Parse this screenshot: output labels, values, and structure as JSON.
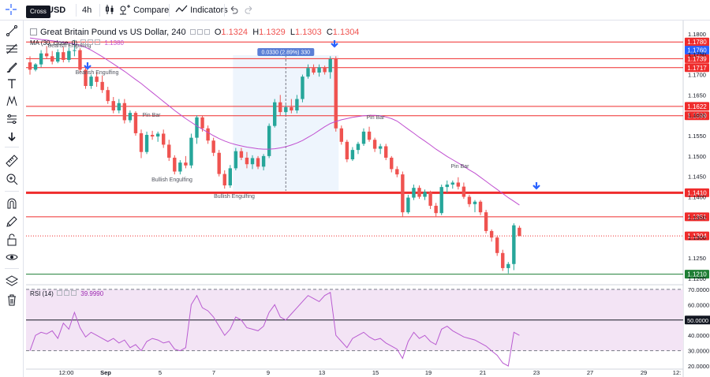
{
  "toolbar": {
    "tooltip": "Cross",
    "symbol": "USD",
    "interval": "4h",
    "compare_label": "Compare",
    "indicators_label": "Indicators"
  },
  "legend": {
    "title": "Great Britain Pound vs US Dollar, 240",
    "open_label": "O",
    "open": "1.1324",
    "high_label": "H",
    "high": "1.1329",
    "low_label": "L",
    "low": "1.1303",
    "close_label": "C",
    "close": "1.1304",
    "ma_label": "MA (30, close, 0)",
    "ma_value": "1.1380"
  },
  "rsi": {
    "label": "RSI (14)",
    "value": "39.9990"
  },
  "measure": {
    "text": "0.0330 (2.89%) 330"
  },
  "colors": {
    "up": "#26a69a",
    "down": "#ef5350",
    "ma": "#c04fd0",
    "rsi_line": "#b95bd1",
    "level": "#ef2c2c",
    "support": "#1e7e34",
    "marker": "#2962ff",
    "rsi_band": "#f3e4f5"
  },
  "icons": [
    "crosshair-icon",
    "trend-line-icon",
    "fib-icon",
    "brush-icon",
    "text-icon",
    "pattern-icon",
    "projection-icon",
    "arrow-down-icon",
    "ruler-icon",
    "zoom-in-icon",
    "magnet-icon",
    "lock-pencil-icon",
    "lock-icon",
    "eye-icon",
    "layers-icon",
    "trash-icon"
  ],
  "chart_data": {
    "type": "candlestick",
    "title": "Great Britain Pound vs US Dollar, 240",
    "price_axis": {
      "ticks": [
        "1.1800",
        "1.1750",
        "1.1700",
        "1.1650",
        "1.1600",
        "1.1550",
        "1.1500",
        "1.1450",
        "1.1400",
        "1.1350",
        "1.1300",
        "1.1250",
        "1.1200"
      ],
      "range": [
        1.119,
        1.1825
      ]
    },
    "time_axis": {
      "labels": [
        "12:00",
        "Sep",
        "5",
        "7",
        "9",
        "13",
        "15",
        "19",
        "21",
        "23",
        "27",
        "29",
        "12:"
      ]
    },
    "levels": [
      {
        "value": 1.178,
        "label": "1.1780",
        "style": "solid"
      },
      {
        "value": 1.176,
        "label": "1.1760",
        "style": "current"
      },
      {
        "value": 1.1739,
        "label": "1.1739",
        "style": "solid"
      },
      {
        "value": 1.1717,
        "label": "1.1717",
        "style": "solid"
      },
      {
        "value": 1.1622,
        "label": "1.1622",
        "style": "solid"
      },
      {
        "value": 1.1599,
        "label": "1.1599",
        "style": "solid"
      },
      {
        "value": 1.141,
        "label": "1.1410",
        "style": "thick"
      },
      {
        "value": 1.1351,
        "label": "1.1351",
        "style": "solid"
      },
      {
        "value": 1.1304,
        "label": "1.1304",
        "style": "dotted"
      },
      {
        "value": 1.121,
        "label": "1.1210",
        "style": "support"
      }
    ],
    "annotations": [
      {
        "text": "Bearish Engulfing"
      },
      {
        "text": "Bearish Engulfing"
      },
      {
        "text": "Pin Bar"
      },
      {
        "text": "Bullish Engulfing"
      },
      {
        "text": "Bullish Engulfing"
      },
      {
        "text": "Pin Bar"
      },
      {
        "text": "Pin Bar"
      }
    ],
    "ma": {
      "period": 30,
      "current": 1.138
    },
    "rsi": {
      "period": 14,
      "current": 39.999,
      "ticks": [
        "70.0000",
        "60.0000",
        "50.0000",
        "40.0000",
        "30.0000",
        "20.0000"
      ],
      "range": [
        18,
        72
      ],
      "bands": [
        30,
        70
      ],
      "mid": 50
    },
    "candles": [
      [
        1.173,
        1.1745,
        1.17,
        1.1712
      ],
      [
        1.1712,
        1.1728,
        1.1708,
        1.1725
      ],
      [
        1.1725,
        1.176,
        1.1718,
        1.1752
      ],
      [
        1.1752,
        1.177,
        1.174,
        1.1745
      ],
      [
        1.1745,
        1.1758,
        1.1725,
        1.1732
      ],
      [
        1.1732,
        1.1762,
        1.1728,
        1.1755
      ],
      [
        1.1755,
        1.1768,
        1.173,
        1.1736
      ],
      [
        1.1736,
        1.1766,
        1.173,
        1.1758
      ],
      [
        1.1758,
        1.1785,
        1.1745,
        1.176
      ],
      [
        1.176,
        1.1765,
        1.1705,
        1.1712
      ],
      [
        1.1712,
        1.172,
        1.1665,
        1.1672
      ],
      [
        1.1672,
        1.17,
        1.1665,
        1.1695
      ],
      [
        1.1695,
        1.1705,
        1.167,
        1.1682
      ],
      [
        1.1682,
        1.1698,
        1.1655,
        1.1662
      ],
      [
        1.1662,
        1.167,
        1.1628,
        1.1635
      ],
      [
        1.1635,
        1.1645,
        1.1605,
        1.1612
      ],
      [
        1.1612,
        1.164,
        1.1605,
        1.163
      ],
      [
        1.163,
        1.164,
        1.158,
        1.1588
      ],
      [
        1.1588,
        1.1612,
        1.1582,
        1.1606
      ],
      [
        1.1606,
        1.161,
        1.155,
        1.1556
      ],
      [
        1.1556,
        1.1565,
        1.1495,
        1.151
      ],
      [
        1.151,
        1.156,
        1.1505,
        1.1552
      ],
      [
        1.1552,
        1.1562,
        1.154,
        1.1548
      ],
      [
        1.1548,
        1.156,
        1.1535,
        1.1555
      ],
      [
        1.1555,
        1.1565,
        1.152,
        1.1528
      ],
      [
        1.1528,
        1.154,
        1.1488,
        1.1496
      ],
      [
        1.1496,
        1.1502,
        1.1455,
        1.1462
      ],
      [
        1.1462,
        1.149,
        1.1455,
        1.1484
      ],
      [
        1.1484,
        1.15,
        1.147,
        1.1477
      ],
      [
        1.1477,
        1.1555,
        1.147,
        1.1545
      ],
      [
        1.1545,
        1.16,
        1.153,
        1.1595
      ],
      [
        1.1595,
        1.16,
        1.156,
        1.1568
      ],
      [
        1.1568,
        1.1575,
        1.153,
        1.1538
      ],
      [
        1.1538,
        1.1545,
        1.15,
        1.1508
      ],
      [
        1.1508,
        1.1515,
        1.145,
        1.1456
      ],
      [
        1.1456,
        1.1465,
        1.142,
        1.1428
      ],
      [
        1.1428,
        1.1478,
        1.1422,
        1.147
      ],
      [
        1.147,
        1.152,
        1.1465,
        1.1512
      ],
      [
        1.1512,
        1.152,
        1.149,
        1.1496
      ],
      [
        1.1496,
        1.151,
        1.147,
        1.148
      ],
      [
        1.148,
        1.1502,
        1.1468,
        1.1495
      ],
      [
        1.1495,
        1.15,
        1.1468,
        1.1474
      ],
      [
        1.1474,
        1.1505,
        1.1465,
        1.15
      ],
      [
        1.15,
        1.158,
        1.1495,
        1.1574
      ],
      [
        1.1574,
        1.164,
        1.157,
        1.1632
      ],
      [
        1.1632,
        1.165,
        1.16,
        1.1608
      ],
      [
        1.1608,
        1.1625,
        1.16,
        1.162
      ],
      [
        1.162,
        1.164,
        1.1605,
        1.1612
      ],
      [
        1.1612,
        1.165,
        1.1605,
        1.164
      ],
      [
        1.164,
        1.17,
        1.1632,
        1.1695
      ],
      [
        1.1695,
        1.1725,
        1.169,
        1.1716
      ],
      [
        1.1716,
        1.1725,
        1.17,
        1.1705
      ],
      [
        1.1705,
        1.1725,
        1.1695,
        1.1718
      ],
      [
        1.1718,
        1.1722,
        1.17,
        1.1706
      ],
      [
        1.1706,
        1.1745,
        1.169,
        1.1738
      ],
      [
        1.1738,
        1.1745,
        1.156,
        1.1568
      ],
      [
        1.1568,
        1.1575,
        1.1528,
        1.1535
      ],
      [
        1.1535,
        1.154,
        1.1485,
        1.1492
      ],
      [
        1.1492,
        1.1522,
        1.1488,
        1.1515
      ],
      [
        1.1515,
        1.1535,
        1.1505,
        1.153
      ],
      [
        1.153,
        1.1568,
        1.1525,
        1.156
      ],
      [
        1.156,
        1.1572,
        1.1535,
        1.154
      ],
      [
        1.154,
        1.1545,
        1.151,
        1.1518
      ],
      [
        1.1518,
        1.153,
        1.1505,
        1.1524
      ],
      [
        1.1524,
        1.153,
        1.149,
        1.1496
      ],
      [
        1.1496,
        1.15,
        1.146,
        1.1468
      ],
      [
        1.1468,
        1.1475,
        1.1448,
        1.1455
      ],
      [
        1.1455,
        1.1462,
        1.135,
        1.1362
      ],
      [
        1.1362,
        1.1405,
        1.1358,
        1.1398
      ],
      [
        1.1398,
        1.143,
        1.1392,
        1.1422
      ],
      [
        1.1422,
        1.1428,
        1.1395,
        1.14
      ],
      [
        1.14,
        1.1418,
        1.1392,
        1.1412
      ],
      [
        1.1412,
        1.1415,
        1.137,
        1.1378
      ],
      [
        1.1378,
        1.1385,
        1.1352,
        1.136
      ],
      [
        1.136,
        1.143,
        1.1355,
        1.1424
      ],
      [
        1.1424,
        1.144,
        1.141,
        1.143
      ],
      [
        1.143,
        1.144,
        1.142,
        1.1435
      ],
      [
        1.1435,
        1.1448,
        1.1418,
        1.1425
      ],
      [
        1.1425,
        1.1435,
        1.1395,
        1.14
      ],
      [
        1.14,
        1.1405,
        1.1375,
        1.1382
      ],
      [
        1.1382,
        1.1392,
        1.1362,
        1.1388
      ],
      [
        1.1388,
        1.1392,
        1.1355,
        1.1362
      ],
      [
        1.1362,
        1.1368,
        1.131,
        1.1316
      ],
      [
        1.1316,
        1.132,
        1.129,
        1.13
      ],
      [
        1.13,
        1.1305,
        1.1255,
        1.1262
      ],
      [
        1.1262,
        1.127,
        1.1218,
        1.1225
      ],
      [
        1.1225,
        1.124,
        1.1212,
        1.1235
      ],
      [
        1.1235,
        1.1335,
        1.122,
        1.133
      ],
      [
        1.1324,
        1.1329,
        1.1303,
        1.1304
      ]
    ],
    "ma_values": [
      1.179,
      1.1788,
      1.1786,
      1.1785,
      1.1783,
      1.1781,
      1.1779,
      1.1777,
      1.1775,
      1.1772,
      1.1767,
      1.176,
      1.1752,
      1.1744,
      1.1735,
      1.1726,
      1.1717,
      1.1708,
      1.1698,
      1.1688,
      1.1678,
      1.1667,
      1.1656,
      1.1645,
      1.1634,
      1.1623,
      1.1612,
      1.1602,
      1.1592,
      1.1583,
      1.1574,
      1.1566,
      1.1558,
      1.155,
      1.1543,
      1.1537,
      1.1532,
      1.1528,
      1.1525,
      1.1522,
      1.152,
      1.1518,
      1.1517,
      1.1517,
      1.1518,
      1.152,
      1.1523,
      1.1527,
      1.1532,
      1.1538,
      1.1546,
      1.1554,
      1.1563,
      1.1572,
      1.158,
      1.1585,
      1.1589,
      1.1592,
      1.1595,
      1.1597,
      1.1599,
      1.16,
      1.16,
      1.1599,
      1.1596,
      1.1592,
      1.1586,
      1.1576,
      1.1566,
      1.1556,
      1.1546,
      1.1537,
      1.1527,
      1.1517,
      1.1508,
      1.1499,
      1.1491,
      1.1483,
      1.1475,
      1.1466,
      1.1458,
      1.1448,
      1.1438,
      1.1428,
      1.1418,
      1.1408,
      1.1398,
      1.1389,
      1.138
    ],
    "rsi_values": [
      30,
      40,
      42,
      41,
      43,
      38,
      48,
      44,
      55,
      45,
      39,
      42,
      40,
      38,
      36,
      38,
      35,
      37,
      32,
      34,
      30,
      36,
      38,
      37,
      35,
      36,
      31,
      30,
      32,
      60,
      66,
      58,
      56,
      52,
      46,
      40,
      44,
      52,
      50,
      45,
      44,
      43,
      46,
      55,
      60,
      52,
      50,
      54,
      58,
      62,
      66,
      64,
      62,
      66,
      68,
      40,
      36,
      32,
      38,
      40,
      42,
      39,
      37,
      38,
      35,
      33,
      31,
      25,
      36,
      42,
      38,
      40,
      36,
      34,
      44,
      46,
      43,
      41,
      39,
      38,
      37,
      35,
      33,
      30,
      27,
      22,
      20,
      42,
      40
    ]
  }
}
